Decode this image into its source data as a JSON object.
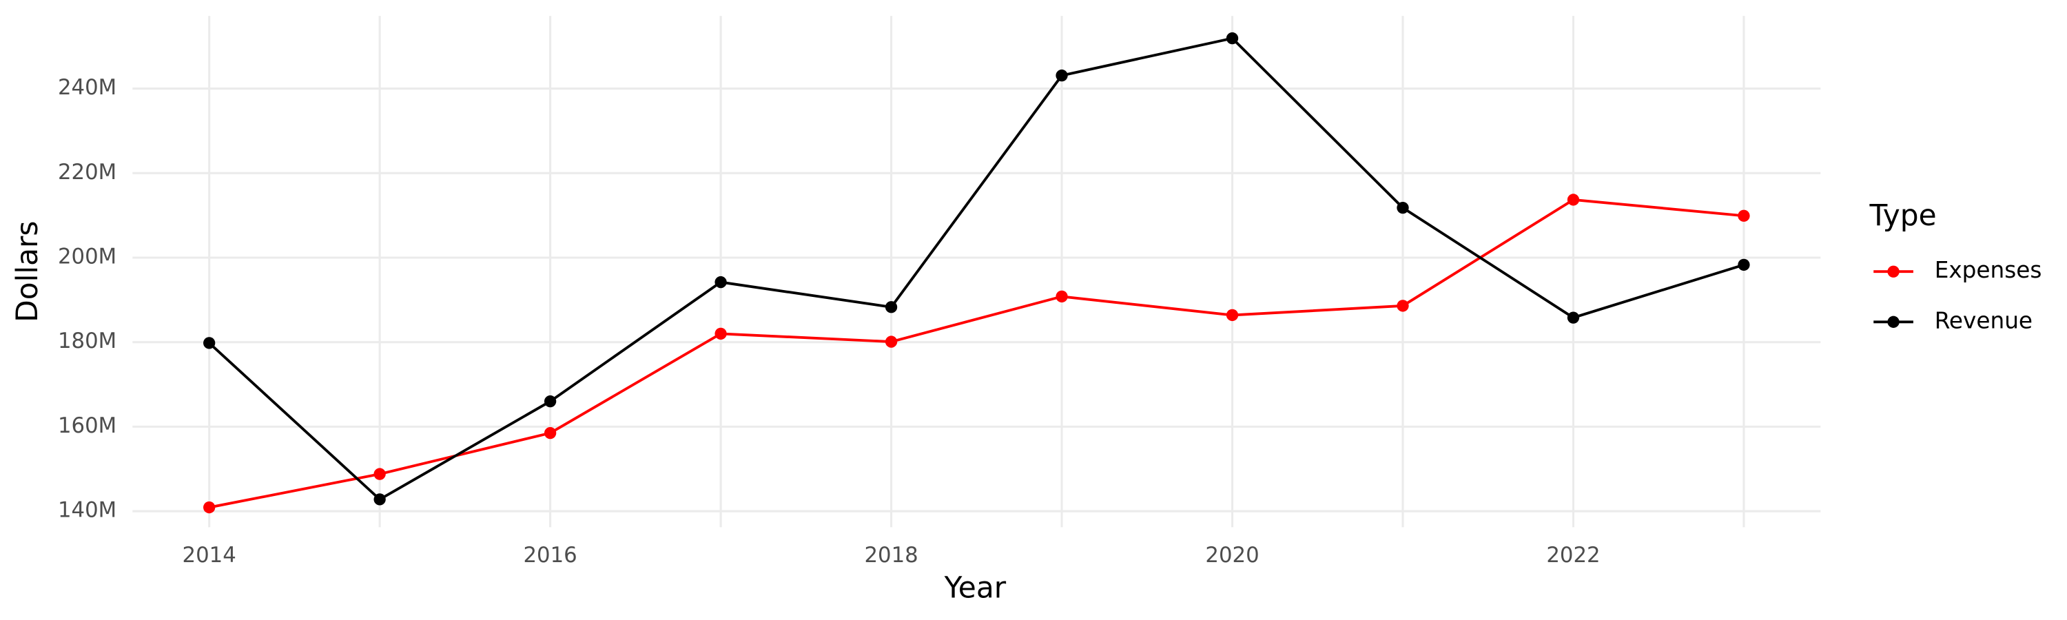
{
  "chart_data": {
    "type": "line",
    "x_label": "Year",
    "y_label": "Dollars",
    "legend_title": "Type",
    "x": [
      2014,
      2015,
      2016,
      2017,
      2018,
      2019,
      2020,
      2021,
      2022,
      2023
    ],
    "series": [
      {
        "name": "Expenses",
        "color": "#ff0000",
        "values": [
          140900000,
          148800000,
          158500000,
          182000000,
          180100000,
          190800000,
          186400000,
          188600000,
          213700000,
          209900000
        ]
      },
      {
        "name": "Revenue",
        "color": "#000000",
        "values": [
          179800000,
          142800000,
          166000000,
          194200000,
          188300000,
          243100000,
          251900000,
          211800000,
          185800000,
          198300000
        ]
      }
    ],
    "xlim": [
      2013.55,
      2023.45
    ],
    "xticks": [
      2014,
      2016,
      2018,
      2020,
      2022
    ],
    "ylim": [
      136200000,
      257200000
    ],
    "yticks": [
      {
        "value": 140000000,
        "label": "140M"
      },
      {
        "value": 160000000,
        "label": "160M"
      },
      {
        "value": 180000000,
        "label": "180M"
      },
      {
        "value": 200000000,
        "label": "200M"
      },
      {
        "value": 220000000,
        "label": "220M"
      },
      {
        "value": 240000000,
        "label": "240M"
      }
    ],
    "grid": true,
    "legend_position": "right"
  }
}
